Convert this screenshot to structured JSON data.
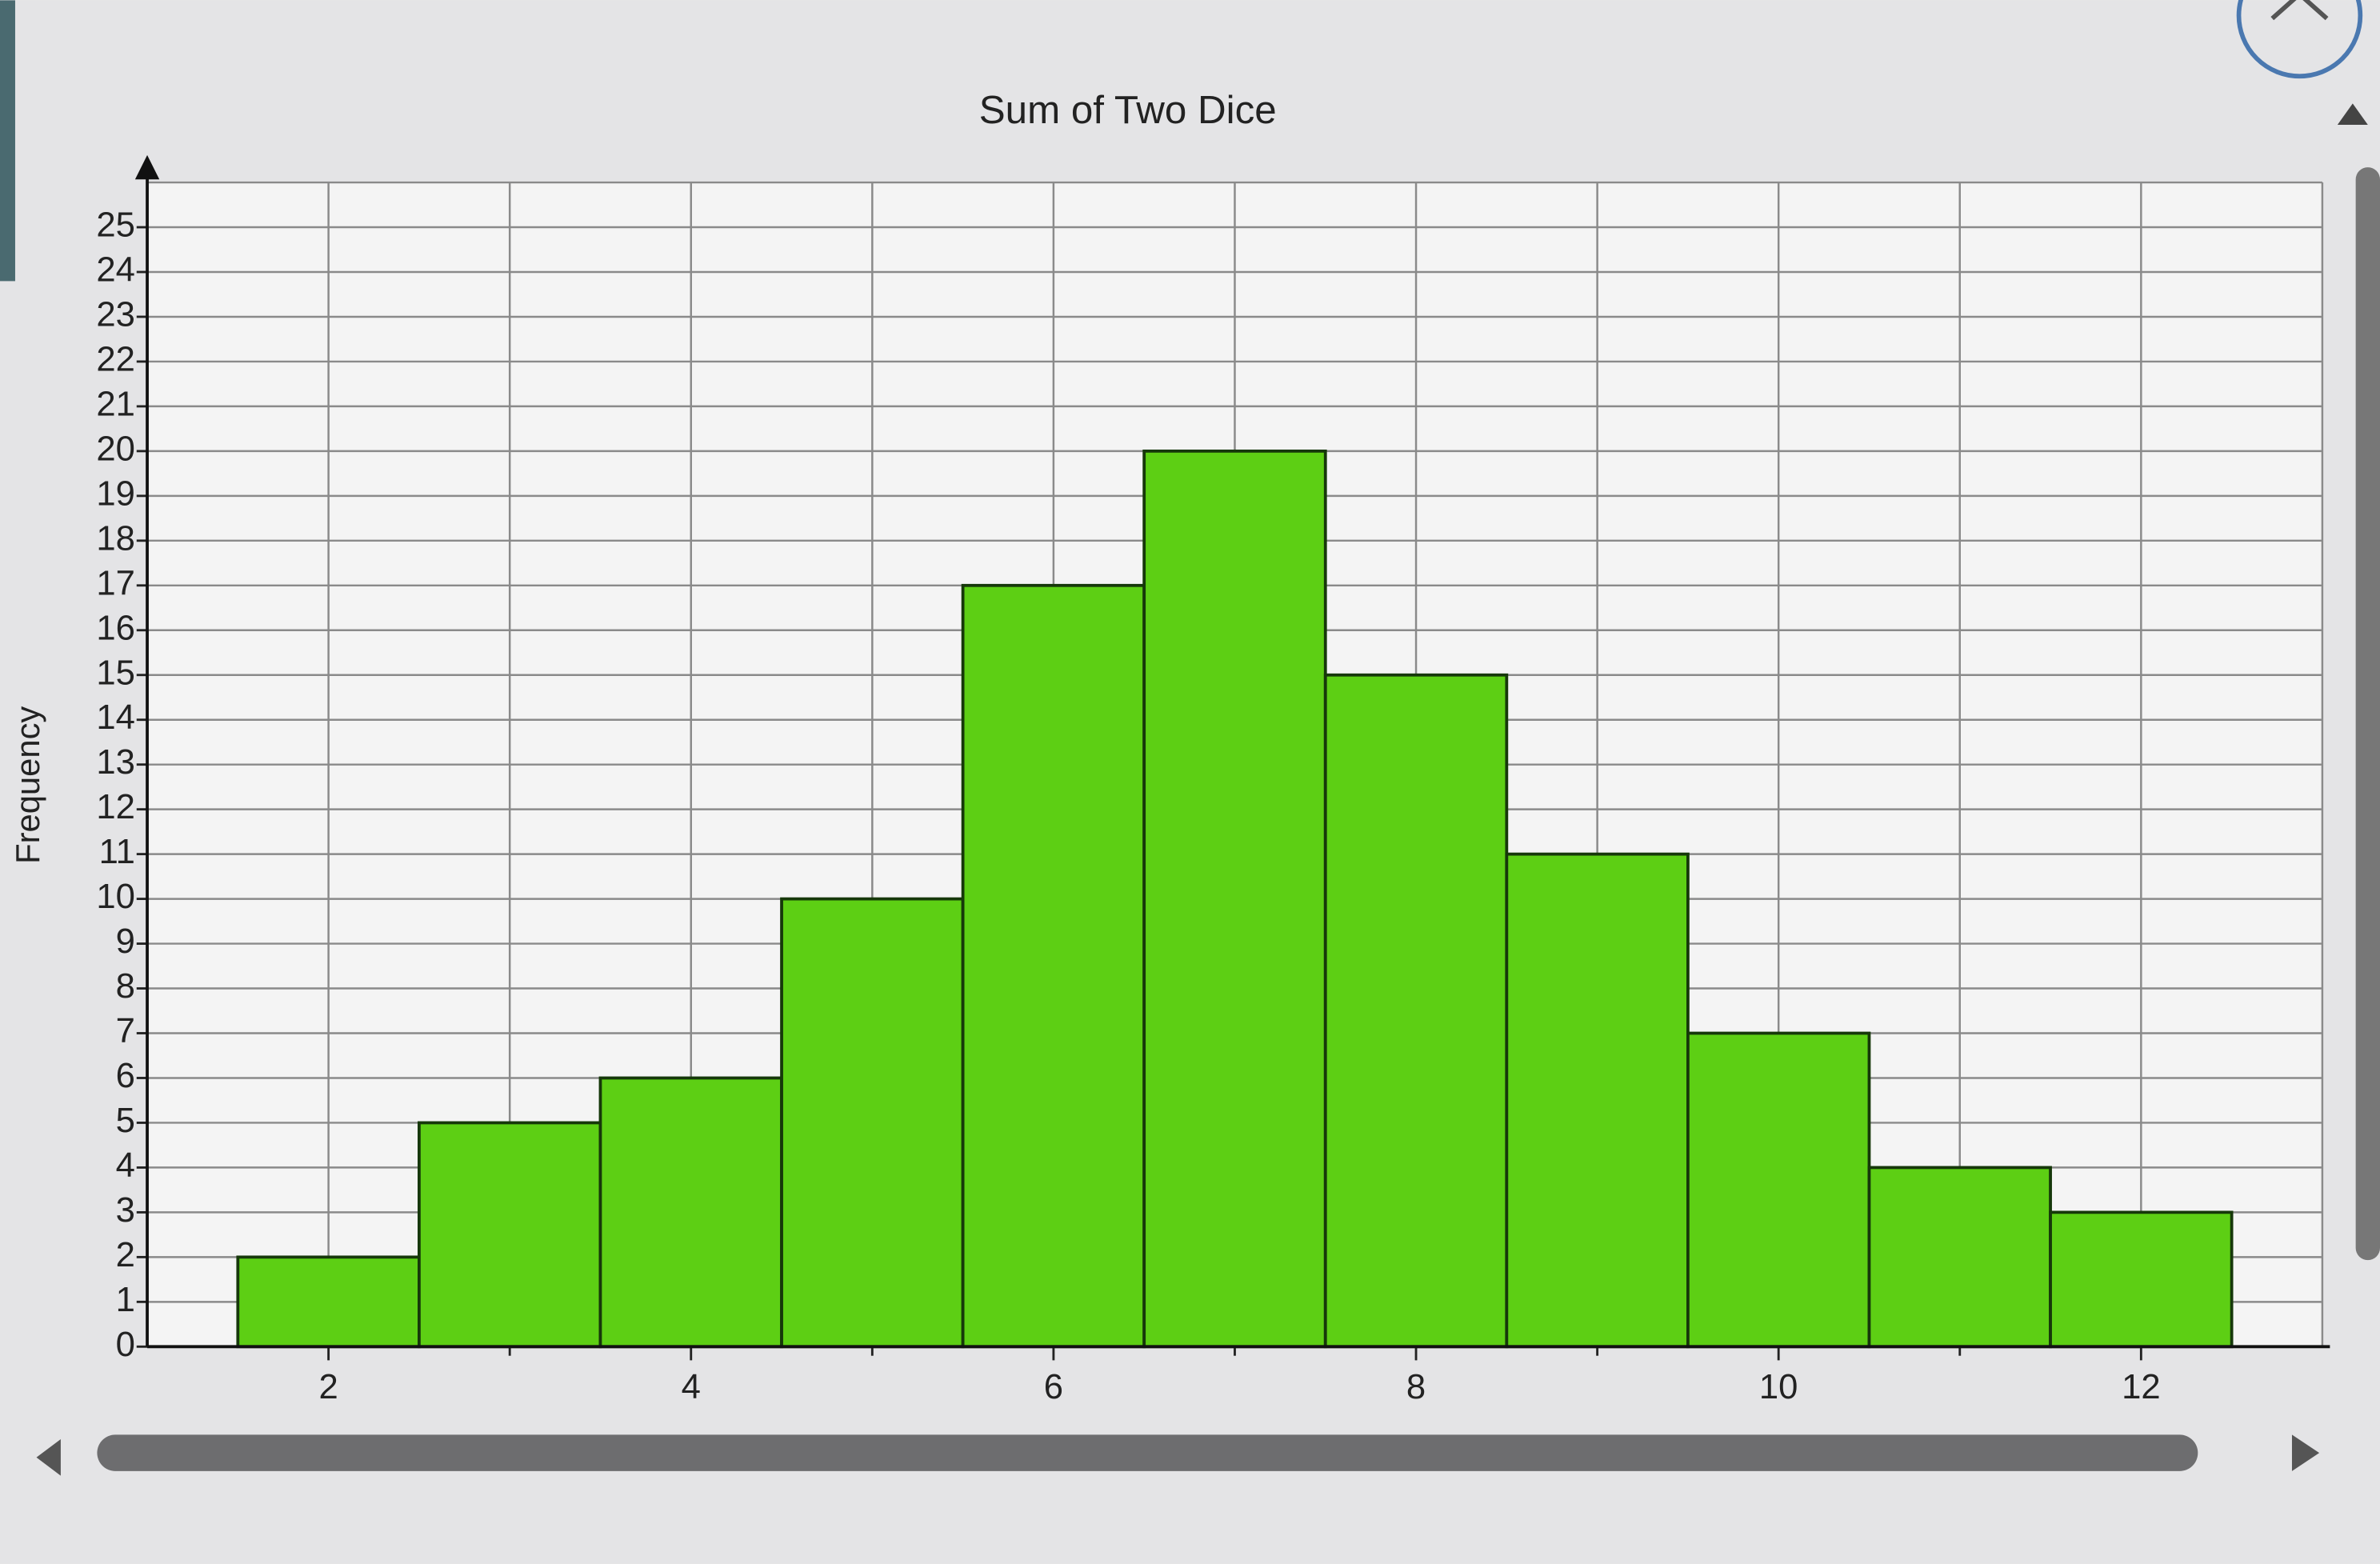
{
  "chart_data": {
    "type": "histogram",
    "title": "Sum of Two Dice",
    "y_label": "Frequency",
    "bins": [
      1.5,
      2.5,
      3.5,
      4.5,
      5.5,
      6.5,
      7.5,
      8.5,
      9.5,
      10.5,
      11.5,
      12.5
    ],
    "values": [
      2,
      5,
      6,
      10,
      17,
      20,
      15,
      11,
      7,
      4,
      3
    ],
    "color": "#5dcf14",
    "xlim": [
      1,
      13
    ],
    "xticks": [
      2,
      4,
      6,
      8,
      10,
      12
    ],
    "xminorticks": [
      3,
      5,
      7,
      9,
      11
    ],
    "ylim": [
      0,
      26
    ],
    "yticks": [
      0,
      1,
      2,
      3,
      4,
      5,
      6,
      7,
      8,
      9,
      10,
      11,
      12,
      13,
      14,
      15,
      16,
      17,
      18,
      19,
      20,
      21,
      22,
      23,
      24,
      25
    ],
    "grid": true
  }
}
